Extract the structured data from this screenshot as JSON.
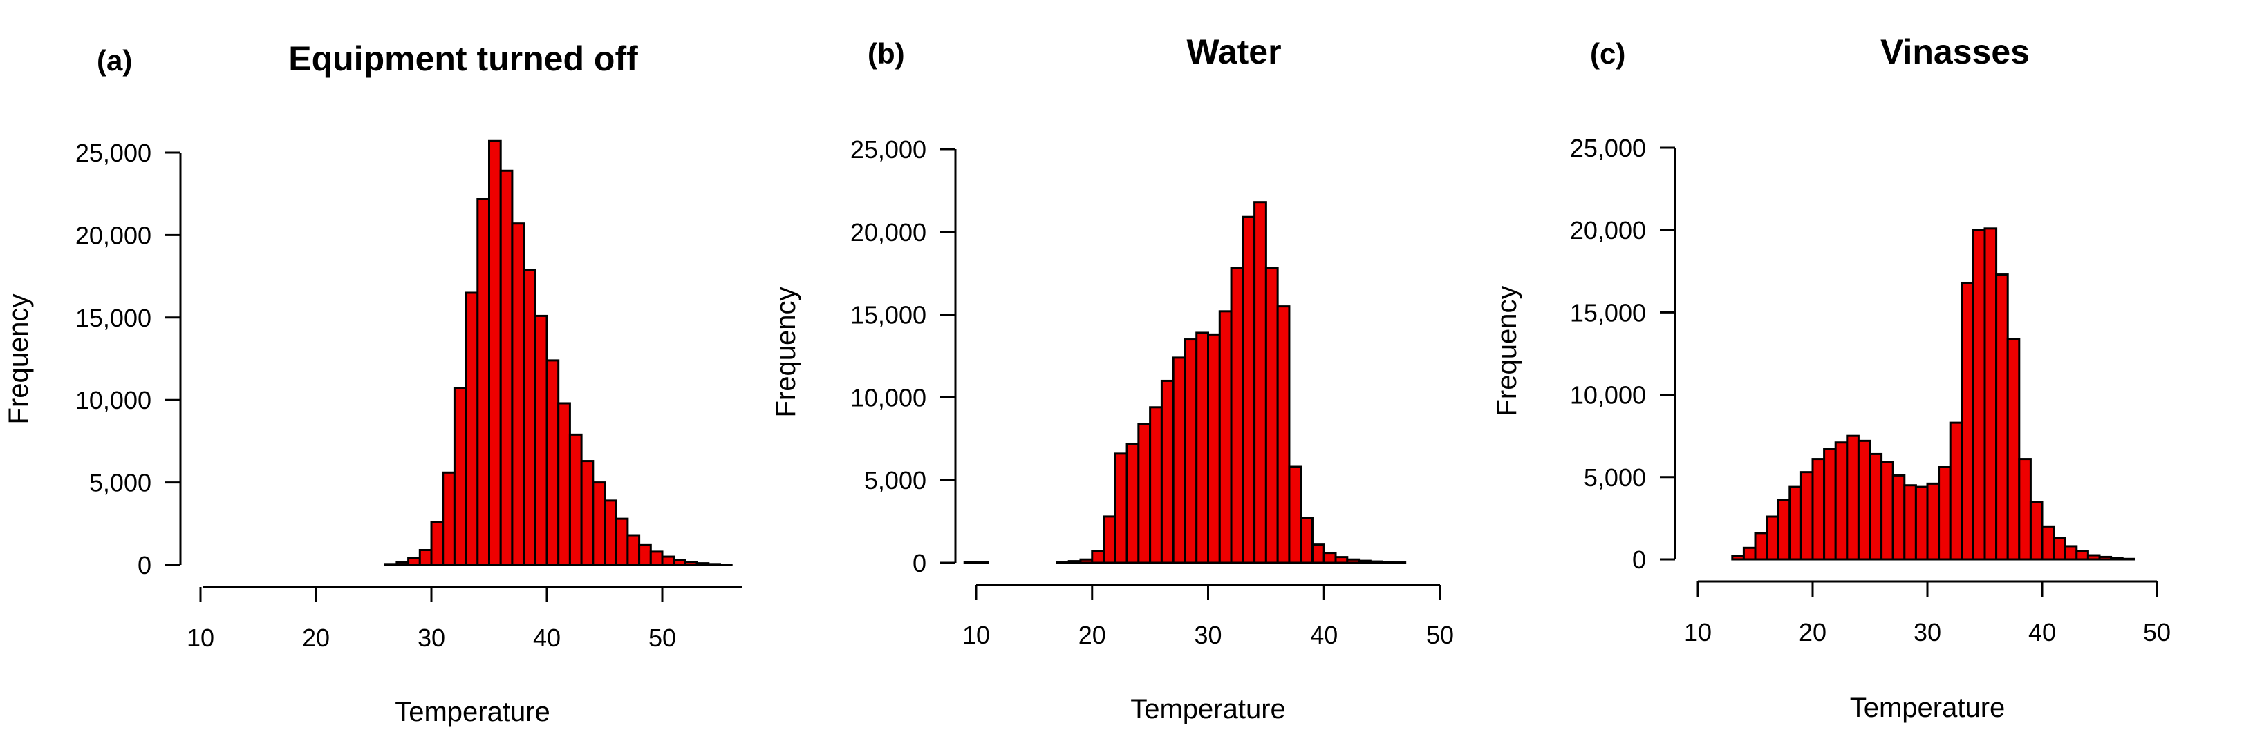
{
  "colors": {
    "bar_fill": "#ee0000",
    "bar_stroke": "#000000",
    "background": "#ffffff"
  },
  "chart_data": [
    {
      "type": "bar",
      "panel_label": "(a)",
      "title": "Equipment turned off",
      "xlabel": "Temperature",
      "ylabel": "Frequency",
      "bin_width": 1,
      "bin_start": 18,
      "x_ticks": [
        "10",
        "20",
        "30",
        "40",
        "50"
      ],
      "x_tick_values": [
        10,
        20,
        30,
        40,
        50
      ],
      "y_ticks": [
        "0",
        "5,000",
        "10,000",
        "15,000",
        "20,000",
        "25,000"
      ],
      "y_tick_values": [
        0,
        5000,
        10000,
        15000,
        20000,
        25000
      ],
      "xlim": [
        10,
        50
      ],
      "ylim": [
        0,
        25000
      ],
      "values": [
        0,
        0,
        0,
        0,
        0,
        0,
        0,
        0,
        50,
        150,
        400,
        900,
        2600,
        5600,
        10700,
        16500,
        22200,
        25700,
        23900,
        20700,
        17900,
        15100,
        12400,
        9800,
        7900,
        6300,
        5000,
        3900,
        2800,
        1800,
        1200,
        800,
        500,
        300,
        180,
        100,
        50,
        20,
        0
      ]
    },
    {
      "type": "bar",
      "panel_label": "(b)",
      "title": "Water",
      "xlabel": "Temperature",
      "ylabel": "Frequency",
      "bin_width": 1,
      "bin_start": 9,
      "x_ticks": [
        "10",
        "20",
        "30",
        "40",
        "50"
      ],
      "x_tick_values": [
        10,
        20,
        30,
        40,
        50
      ],
      "y_ticks": [
        "0",
        "5,000",
        "10,000",
        "15,000",
        "20,000",
        "25,000"
      ],
      "y_tick_values": [
        0,
        5000,
        10000,
        15000,
        20000,
        25000
      ],
      "xlim": [
        10,
        50
      ],
      "ylim": [
        0,
        25000
      ],
      "values": [
        50,
        20,
        0,
        0,
        0,
        0,
        0,
        0,
        20,
        100,
        200,
        700,
        2800,
        6600,
        7200,
        8400,
        9400,
        11000,
        12400,
        13500,
        13900,
        13800,
        15200,
        17800,
        20900,
        21800,
        17800,
        15500,
        5800,
        2700,
        1100,
        600,
        350,
        200,
        120,
        80,
        40,
        20,
        0
      ]
    },
    {
      "type": "bar",
      "panel_label": "(c)",
      "title": "Vinasses",
      "xlabel": "Temperature",
      "ylabel": "Frequency",
      "bin_width": 1,
      "bin_start": 9,
      "x_ticks": [
        "10",
        "20",
        "30",
        "40",
        "50"
      ],
      "x_tick_values": [
        10,
        20,
        30,
        40,
        50
      ],
      "y_ticks": [
        "0",
        "5,000",
        "10,000",
        "15,000",
        "20,000",
        "25,000"
      ],
      "y_tick_values": [
        0,
        5000,
        10000,
        15000,
        20000,
        25000
      ],
      "xlim": [
        10,
        50
      ],
      "ylim": [
        0,
        25000
      ],
      "values": [
        0,
        0,
        0,
        0,
        200,
        700,
        1600,
        2600,
        3600,
        4400,
        5300,
        6100,
        6700,
        7100,
        7500,
        7200,
        6400,
        5900,
        5100,
        4500,
        4400,
        4600,
        5600,
        8300,
        16800,
        20000,
        20100,
        17300,
        13400,
        6100,
        3500,
        2000,
        1300,
        800,
        500,
        250,
        150,
        80,
        30,
        0,
        0,
        0,
        0,
        0,
        0,
        0
      ]
    }
  ]
}
